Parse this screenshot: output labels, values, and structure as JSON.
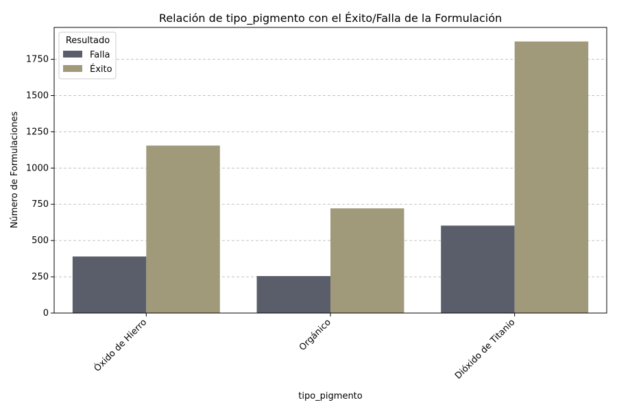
{
  "chart_data": {
    "type": "bar",
    "title": "Relación de tipo_pigmento con el Éxito/Falla de la Formulación",
    "xlabel": "tipo_pigmento",
    "ylabel": "Número de Formulaciones",
    "categories": [
      "Óxido de Hierro",
      "Orgánico",
      "Dióxido de Titanio"
    ],
    "series": [
      {
        "name": "Falla",
        "values": [
          390,
          255,
          603
        ],
        "color": "#5a5e6b"
      },
      {
        "name": "Éxito",
        "values": [
          1155,
          722,
          1873
        ],
        "color": "#a09a7b"
      }
    ],
    "ylim": [
      0,
      1970
    ],
    "yticks": [
      "0",
      "250",
      "500",
      "750",
      "1000",
      "1250",
      "1500",
      "1750"
    ],
    "grid": "y-dashed",
    "legend": {
      "title": "Resultado",
      "position": "top-left"
    }
  }
}
